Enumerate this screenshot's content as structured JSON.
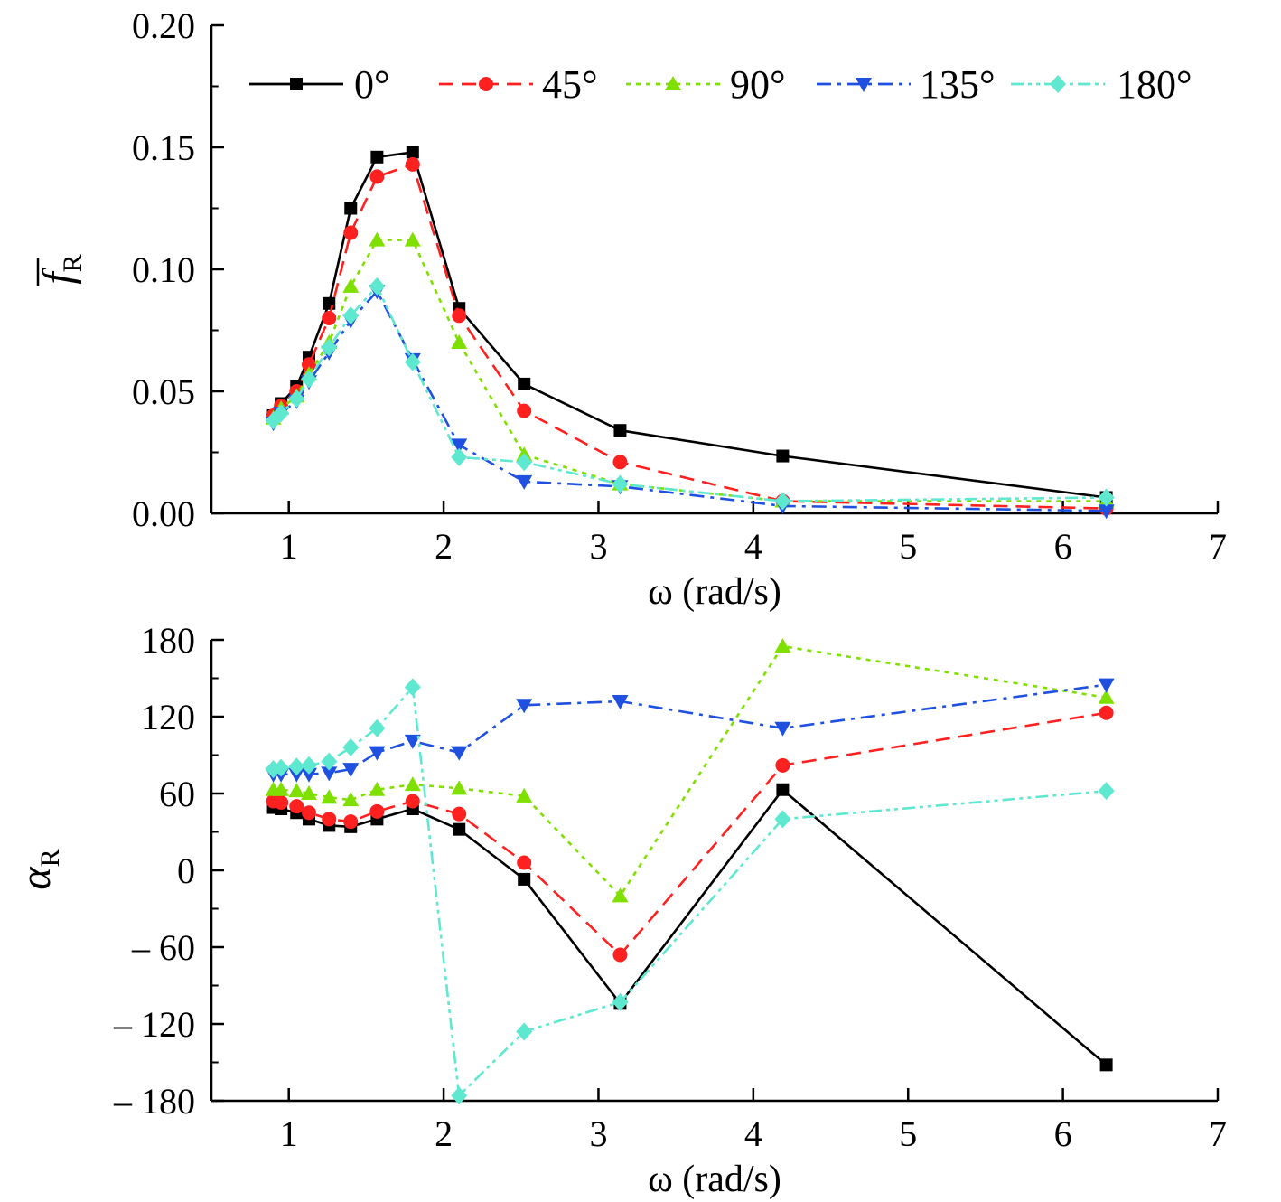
{
  "chart_data": [
    {
      "type": "line",
      "xlabel": "ω (rad/s)",
      "ylabel_symbol": "f",
      "ylabel_subscript": "R",
      "xlim": [
        0.5,
        7
      ],
      "ylim": [
        0,
        0.2
      ],
      "xticks": [
        1,
        2,
        3,
        4,
        5,
        6,
        7
      ],
      "xtick_labels": [
        "1",
        "2",
        "3",
        "4",
        "5",
        "6",
        "7"
      ],
      "yticks": [
        0,
        0.05,
        0.1,
        0.15,
        0.2
      ],
      "ytick_labels": [
        "0.00",
        "0.05",
        "0.10",
        "0.15",
        "0.20"
      ],
      "legend": "top",
      "series": [
        {
          "name": "0°",
          "color": "#000000",
          "marker": "square",
          "dash": "solid",
          "x": [
            0.9,
            0.95,
            1.05,
            1.13,
            1.26,
            1.4,
            1.57,
            1.8,
            2.1,
            2.52,
            3.14,
            4.19,
            6.28
          ],
          "y": [
            0.04,
            0.045,
            0.052,
            0.064,
            0.086,
            0.125,
            0.146,
            0.148,
            0.084,
            0.053,
            0.034,
            0.0235,
            0.0065
          ]
        },
        {
          "name": "45°",
          "color": "#ff2020",
          "marker": "circle",
          "dash": "dashed",
          "x": [
            0.9,
            0.95,
            1.05,
            1.13,
            1.26,
            1.4,
            1.57,
            1.8,
            2.1,
            2.52,
            3.14,
            4.19,
            6.28
          ],
          "y": [
            0.04,
            0.044,
            0.05,
            0.061,
            0.08,
            0.115,
            0.138,
            0.143,
            0.081,
            0.042,
            0.021,
            0.005,
            0.002
          ]
        },
        {
          "name": "90°",
          "color": "#7fe000",
          "marker": "triangle-up",
          "dash": "dotted",
          "x": [
            0.9,
            0.95,
            1.05,
            1.13,
            1.26,
            1.4,
            1.57,
            1.8,
            2.1,
            2.52,
            3.14,
            4.19,
            6.28
          ],
          "y": [
            0.039,
            0.043,
            0.048,
            0.057,
            0.07,
            0.093,
            0.112,
            0.112,
            0.07,
            0.024,
            0.012,
            0.005,
            0.005
          ]
        },
        {
          "name": "135°",
          "color": "#1f50e0",
          "marker": "triangle-down",
          "dash": "dashdot",
          "x": [
            0.9,
            0.95,
            1.05,
            1.13,
            1.26,
            1.4,
            1.57,
            1.8,
            2.1,
            2.52,
            3.14,
            4.19,
            6.28
          ],
          "y": [
            0.037,
            0.041,
            0.046,
            0.054,
            0.066,
            0.079,
            0.091,
            0.063,
            0.028,
            0.013,
            0.011,
            0.003,
            0.001
          ]
        },
        {
          "name": "180°",
          "color": "#5ee8d0",
          "marker": "diamond",
          "dash": "dashdotdot",
          "x": [
            0.9,
            0.95,
            1.05,
            1.13,
            1.26,
            1.4,
            1.57,
            1.8,
            2.1,
            2.52,
            3.14,
            4.19,
            6.28
          ],
          "y": [
            0.038,
            0.041,
            0.047,
            0.055,
            0.068,
            0.081,
            0.093,
            0.062,
            0.023,
            0.021,
            0.012,
            0.005,
            0.0065
          ]
        }
      ]
    },
    {
      "type": "line",
      "xlabel": "ω (rad/s)",
      "ylabel_symbol": "α",
      "ylabel_subscript": "R",
      "xlim": [
        0.5,
        7
      ],
      "ylim": [
        -180,
        180
      ],
      "xticks": [
        1,
        2,
        3,
        4,
        5,
        6,
        7
      ],
      "xtick_labels": [
        "1",
        "2",
        "3",
        "4",
        "5",
        "6",
        "7"
      ],
      "yticks": [
        -180,
        -120,
        -60,
        0,
        60,
        120,
        180
      ],
      "ytick_labels": [
        "– 180",
        "– 120",
        "– 60",
        "0",
        "60",
        "120",
        "180"
      ],
      "legend": "none",
      "series": [
        {
          "name": "0°",
          "color": "#000000",
          "marker": "square",
          "dash": "solid",
          "x": [
            0.9,
            0.95,
            1.05,
            1.13,
            1.26,
            1.4,
            1.57,
            1.8,
            2.1,
            2.52,
            3.14,
            4.19,
            6.28
          ],
          "y": [
            49,
            48,
            45,
            40,
            35,
            34,
            40,
            48,
            32,
            -7,
            -104,
            63,
            -152
          ]
        },
        {
          "name": "45°",
          "color": "#ff2020",
          "marker": "circle",
          "dash": "dashed",
          "x": [
            0.9,
            0.95,
            1.05,
            1.13,
            1.26,
            1.4,
            1.57,
            1.8,
            2.1,
            2.52,
            3.14,
            4.19,
            6.28
          ],
          "y": [
            54,
            53,
            50,
            45,
            40,
            38,
            46,
            54,
            44,
            6,
            -66,
            82,
            123
          ]
        },
        {
          "name": "90°",
          "color": "#7fe000",
          "marker": "triangle-up",
          "dash": "dotted",
          "x": [
            0.9,
            0.95,
            1.05,
            1.13,
            1.26,
            1.4,
            1.57,
            1.8,
            2.1,
            2.52,
            3.14,
            4.19,
            6.28
          ],
          "y": [
            63,
            63,
            62,
            60,
            57,
            55,
            63,
            67,
            64,
            58,
            -20,
            175,
            135
          ]
        },
        {
          "name": "135°",
          "color": "#1f50e0",
          "marker": "triangle-down",
          "dash": "dashdot",
          "x": [
            0.9,
            0.95,
            1.05,
            1.13,
            1.26,
            1.4,
            1.57,
            1.8,
            2.1,
            2.52,
            3.14,
            4.19,
            6.28
          ],
          "y": [
            75,
            75,
            75,
            75,
            76,
            79,
            92,
            101,
            92,
            129,
            132,
            111,
            145
          ]
        },
        {
          "name": "180°",
          "color": "#5ee8d0",
          "marker": "diamond",
          "dash": "dashdotdot",
          "x": [
            0.9,
            0.95,
            1.05,
            1.13,
            1.26,
            1.4,
            1.57,
            1.8,
            2.1,
            2.52,
            3.14,
            4.19,
            6.28
          ],
          "y": [
            79,
            80,
            81,
            82,
            85,
            96,
            111,
            143,
            -176,
            -126,
            -103,
            40,
            62
          ]
        }
      ]
    }
  ]
}
